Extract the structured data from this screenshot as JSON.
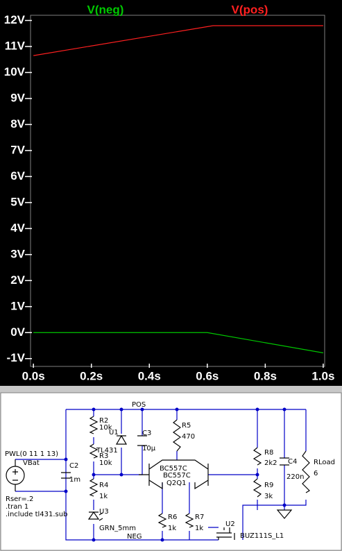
{
  "chart_data": {
    "type": "line",
    "series": [
      {
        "name": "V(neg)",
        "color": "#00c800",
        "x": [
          0,
          0.6,
          1.0
        ],
        "values": [
          0,
          0,
          -0.78
        ]
      },
      {
        "name": "V(pos)",
        "color": "#ff2020",
        "x": [
          0,
          0.62,
          1.0
        ],
        "values": [
          10.65,
          11.8,
          11.8
        ]
      }
    ],
    "xlim": [
      -0.01,
      1.005
    ],
    "xticks": [
      {
        "value": 0,
        "label": "0.0s"
      },
      {
        "value": 0.2,
        "label": "0.2s"
      },
      {
        "value": 0.4,
        "label": "0.4s"
      },
      {
        "value": 0.6,
        "label": "0.6s"
      },
      {
        "value": 0.8,
        "label": "0.8s"
      },
      {
        "value": 1.0,
        "label": "1.0s"
      }
    ],
    "ylim": [
      -1.3,
      12.2
    ],
    "yticks": [
      {
        "value": 12,
        "label": "12V"
      },
      {
        "value": 11,
        "label": "11V"
      },
      {
        "value": 10,
        "label": "10V"
      },
      {
        "value": 9,
        "label": "9V"
      },
      {
        "value": 8,
        "label": "8V"
      },
      {
        "value": 7,
        "label": "7V"
      },
      {
        "value": 6,
        "label": "6V"
      },
      {
        "value": 5,
        "label": "5V"
      },
      {
        "value": 4,
        "label": "4V"
      },
      {
        "value": 3,
        "label": "3V"
      },
      {
        "value": 2,
        "label": "2V"
      },
      {
        "value": 1,
        "label": "1V"
      },
      {
        "value": 0,
        "label": "0V"
      },
      {
        "value": -1,
        "label": "-1V"
      }
    ],
    "grid": false
  },
  "schematic": {
    "labels": [
      "POS",
      "R2",
      "10k",
      "U1",
      "TL431",
      "R3",
      "10k",
      "C3",
      "10µ",
      "R5",
      "470",
      "R4",
      "1k",
      "U3",
      "GRN_5mm",
      "NEG",
      "BC557C",
      "BC557C",
      "Q2Q1",
      "R6",
      "1k",
      "R7",
      "1k",
      "U2",
      "BUZ111S_L1",
      "R8",
      "2k2",
      "R9",
      "3k",
      "C4",
      "220n",
      "RLoad",
      "6",
      "PWL(0 11 1 13)",
      "VBat",
      "C2",
      "1m",
      "Rser=.2",
      ".tran 1",
      ".include tl431.sub"
    ]
  }
}
